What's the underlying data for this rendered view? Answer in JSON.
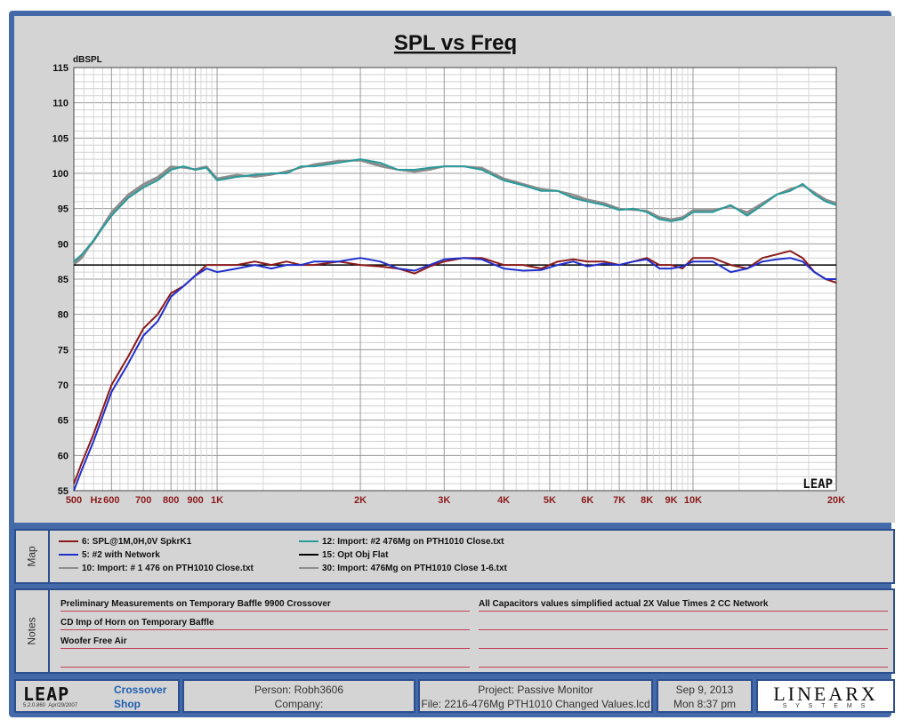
{
  "chart_data": {
    "type": "line",
    "title": "SPL vs Freq",
    "ylabel": "dBSPL",
    "xlabel": "",
    "x_scale": "log",
    "xlim": [
      500,
      20000
    ],
    "ylim": [
      55,
      115
    ],
    "y_ticks": [
      55,
      60,
      65,
      70,
      75,
      80,
      85,
      90,
      95,
      100,
      105,
      110,
      115
    ],
    "x_ticks": [
      {
        "v": 500,
        "label": "500"
      },
      {
        "v": 600,
        "label": "600"
      },
      {
        "v": 700,
        "label": "700"
      },
      {
        "v": 800,
        "label": "800"
      },
      {
        "v": 900,
        "label": "900"
      },
      {
        "v": 1000,
        "label": "1K"
      },
      {
        "v": 2000,
        "label": "2K"
      },
      {
        "v": 3000,
        "label": "3K"
      },
      {
        "v": 4000,
        "label": "4K"
      },
      {
        "v": 5000,
        "label": "5K"
      },
      {
        "v": 6000,
        "label": "6K"
      },
      {
        "v": 7000,
        "label": "7K"
      },
      {
        "v": 8000,
        "label": "8K"
      },
      {
        "v": 9000,
        "label": "9K"
      },
      {
        "v": 10000,
        "label": "10K"
      },
      {
        "v": 20000,
        "label": "20K"
      }
    ],
    "x_unit_label": "Hz",
    "grid": true,
    "watermark": "LEAP",
    "series": [
      {
        "name": "6: SPL@1M,0H,0V SpkrK1",
        "color": "#8b1a1a",
        "x": [
          500,
          520,
          550,
          600,
          650,
          700,
          750,
          800,
          850,
          900,
          950,
          1000,
          1100,
          1200,
          1300,
          1400,
          1500,
          1600,
          1800,
          2000,
          2200,
          2400,
          2600,
          2800,
          3000,
          3300,
          3600,
          4000,
          4400,
          4800,
          5200,
          5600,
          6000,
          6500,
          7000,
          7500,
          8000,
          8500,
          9000,
          9500,
          10000,
          11000,
          12000,
          13000,
          14000,
          15000,
          16000,
          17000,
          18000,
          19000,
          20000
        ],
        "y": [
          56,
          59,
          63,
          70,
          74,
          78,
          80,
          83,
          84,
          85.5,
          87,
          87,
          87,
          87.5,
          87,
          87.5,
          87,
          87,
          87.5,
          87,
          86.8,
          86.5,
          85.8,
          86.8,
          87.5,
          88,
          88,
          87,
          87,
          86.5,
          87.5,
          87.8,
          87.5,
          87.5,
          87,
          87.5,
          88,
          87,
          87,
          86.5,
          88,
          88,
          87,
          86.5,
          88,
          88.5,
          89,
          88,
          86,
          85,
          84.5
        ]
      },
      {
        "name": "5: #2 with Network",
        "color": "#1f2fcc",
        "x": [
          500,
          520,
          550,
          600,
          650,
          700,
          750,
          800,
          850,
          900,
          950,
          1000,
          1100,
          1200,
          1300,
          1400,
          1500,
          1600,
          1800,
          2000,
          2200,
          2400,
          2600,
          2800,
          3000,
          3300,
          3600,
          4000,
          4400,
          4800,
          5200,
          5600,
          6000,
          6500,
          7000,
          7500,
          8000,
          8500,
          9000,
          9500,
          10000,
          11000,
          12000,
          13000,
          14000,
          15000,
          16000,
          17000,
          18000,
          19000,
          20000
        ],
        "y": [
          55,
          58,
          62,
          69,
          73,
          77,
          79,
          82.5,
          84,
          85.5,
          86.5,
          86,
          86.5,
          87,
          86.5,
          87,
          87,
          87.5,
          87.5,
          88,
          87.5,
          86.5,
          86.2,
          87,
          87.8,
          88,
          87.8,
          86.5,
          86.2,
          86.3,
          87,
          87.5,
          86.8,
          87.2,
          87,
          87.5,
          87.8,
          86.5,
          86.5,
          86.8,
          87.5,
          87.5,
          86,
          86.5,
          87.5,
          87.8,
          88,
          87.5,
          86,
          85,
          85
        ]
      },
      {
        "name": "12: Import: #2 476Mg on PTH1010 Close.txt",
        "color": "#2a9a9a",
        "x": [
          500,
          520,
          550,
          600,
          650,
          700,
          750,
          800,
          850,
          900,
          950,
          1000,
          1100,
          1200,
          1300,
          1400,
          1500,
          1600,
          1800,
          2000,
          2200,
          2400,
          2600,
          2800,
          3000,
          3300,
          3600,
          4000,
          4400,
          4800,
          5200,
          5600,
          6000,
          6500,
          7000,
          7500,
          8000,
          8500,
          9000,
          9500,
          10000,
          11000,
          12000,
          13000,
          14000,
          15000,
          16000,
          17000,
          18000,
          19000,
          20000
        ],
        "y": [
          87.5,
          88.5,
          90.5,
          94,
          96.5,
          98,
          99,
          100.5,
          101,
          100.5,
          100.8,
          99,
          99.5,
          99.8,
          100,
          100,
          101,
          101,
          101.5,
          102,
          101.5,
          100.5,
          100.5,
          100.8,
          101,
          101,
          100.5,
          99,
          98.3,
          97.5,
          97.5,
          96.5,
          96,
          95.5,
          94.8,
          95,
          94.5,
          93.5,
          93.2,
          93.5,
          94.5,
          94.5,
          95.5,
          94,
          95.5,
          97,
          97.5,
          98.5,
          97,
          96,
          95.5
        ]
      },
      {
        "name": "15: Opt Obj Flat",
        "color": "#000000",
        "x": [
          500,
          20000
        ],
        "y": [
          87,
          87
        ]
      },
      {
        "name": "10: Import: # 1 476 on PTH1010 Close.txt",
        "color": "#8c8c8c",
        "x": [
          500,
          520,
          550,
          600,
          650,
          700,
          750,
          800,
          850,
          900,
          950,
          1000,
          1100,
          1200,
          1300,
          1400,
          1500,
          1600,
          1800,
          2000,
          2200,
          2400,
          2600,
          2800,
          3000,
          3300,
          3600,
          4000,
          4400,
          4800,
          5200,
          5600,
          6000,
          6500,
          7000,
          7500,
          8000,
          8500,
          9000,
          9500,
          10000,
          11000,
          12000,
          13000,
          14000,
          15000,
          16000,
          17000,
          18000,
          19000,
          20000
        ],
        "y": [
          87,
          88,
          90.5,
          94.5,
          97,
          98.5,
          99.5,
          101,
          100.8,
          100.6,
          101,
          99.3,
          99.8,
          99.5,
          99.8,
          100.3,
          100.8,
          101.3,
          101.8,
          101.8,
          101,
          100.5,
          100.2,
          100.5,
          101,
          101,
          100.8,
          99.3,
          98.5,
          97.8,
          97.5,
          97,
          96.3,
          95.8,
          95,
          94.8,
          94.7,
          93.8,
          93.5,
          93.8,
          94.8,
          94.8,
          95.3,
          94.5,
          95.8,
          97,
          97.8,
          98.3,
          97.3,
          96.3,
          95.8
        ]
      },
      {
        "name": "30: Import: 476Mg on PTH1010 Close 1-6.txt",
        "color": "#8c8c8c",
        "x": [
          500,
          520,
          550,
          600,
          650,
          700,
          750,
          800,
          850,
          900,
          950,
          1000,
          1100,
          1200,
          1300,
          1400,
          1500,
          1600,
          1800,
          2000,
          2200,
          2400,
          2600,
          2800,
          3000,
          3300,
          3600,
          4000,
          4400,
          4800,
          5200,
          5600,
          6000,
          6500,
          7000,
          7500,
          8000,
          8500,
          9000,
          9500,
          10000,
          11000,
          12000,
          13000,
          14000,
          15000,
          16000,
          17000,
          18000,
          19000,
          20000
        ],
        "y": [
          87.2,
          88.3,
          90.3,
          94.3,
          96.8,
          98.3,
          99.3,
          100.8,
          100.9,
          100.5,
          100.9,
          99.1,
          99.6,
          99.6,
          99.9,
          100.1,
          100.9,
          101.1,
          101.6,
          101.9,
          101.2,
          100.5,
          100.3,
          100.6,
          101,
          101,
          100.6,
          99.1,
          98.4,
          97.6,
          97.5,
          96.7,
          96.1,
          95.6,
          94.9,
          94.9,
          94.6,
          93.6,
          93.3,
          93.6,
          94.6,
          94.6,
          95.4,
          94.2,
          95.6,
          97,
          97.6,
          98.4,
          97.1,
          96.1,
          95.6
        ]
      }
    ]
  },
  "map": {
    "label": "Map",
    "items": [
      {
        "text": "6: SPL@1M,0H,0V SpkrK1",
        "color": "#8b1a1a"
      },
      {
        "text": "5: #2 with Network",
        "color": "#1f2fcc"
      },
      {
        "text": "10: Import: # 1 476 on PTH1010 Close.txt",
        "color": "#8c8c8c"
      },
      {
        "text": "12: Import: #2 476Mg on PTH1010 Close.txt",
        "color": "#2a9a9a"
      },
      {
        "text": "15: Opt Obj Flat",
        "color": "#000000"
      },
      {
        "text": "30: Import: 476Mg on PTH1010 Close 1-6.txt",
        "color": "#8c8c8c"
      }
    ]
  },
  "notes": {
    "label": "Notes",
    "left": [
      "Preliminary Measurements on Temporary Baffle  9900 Crossover",
      "CD Imp of Horn on Temporary Baffle",
      "Woofer Free Air",
      ""
    ],
    "right": [
      "All Capacitors values simplified actual 2X Value Times 2 CC Network",
      "",
      "",
      ""
    ]
  },
  "footer": {
    "logo": "LEAP",
    "version": "5.2.0.860",
    "version_date": "Apr/29/2007",
    "app_line1": "Crossover",
    "app_line2": "Shop",
    "person": "Person: Robh3606",
    "company": "Company:",
    "project": "Project: Passive Monitor",
    "file": "File: 2216-476Mg PTH1010 Changed Values.lcd",
    "date": "Sep  9, 2013",
    "time": "Mon  8:37 pm",
    "brand": "LINEARX",
    "brand_sub": "S Y S T E M S"
  }
}
